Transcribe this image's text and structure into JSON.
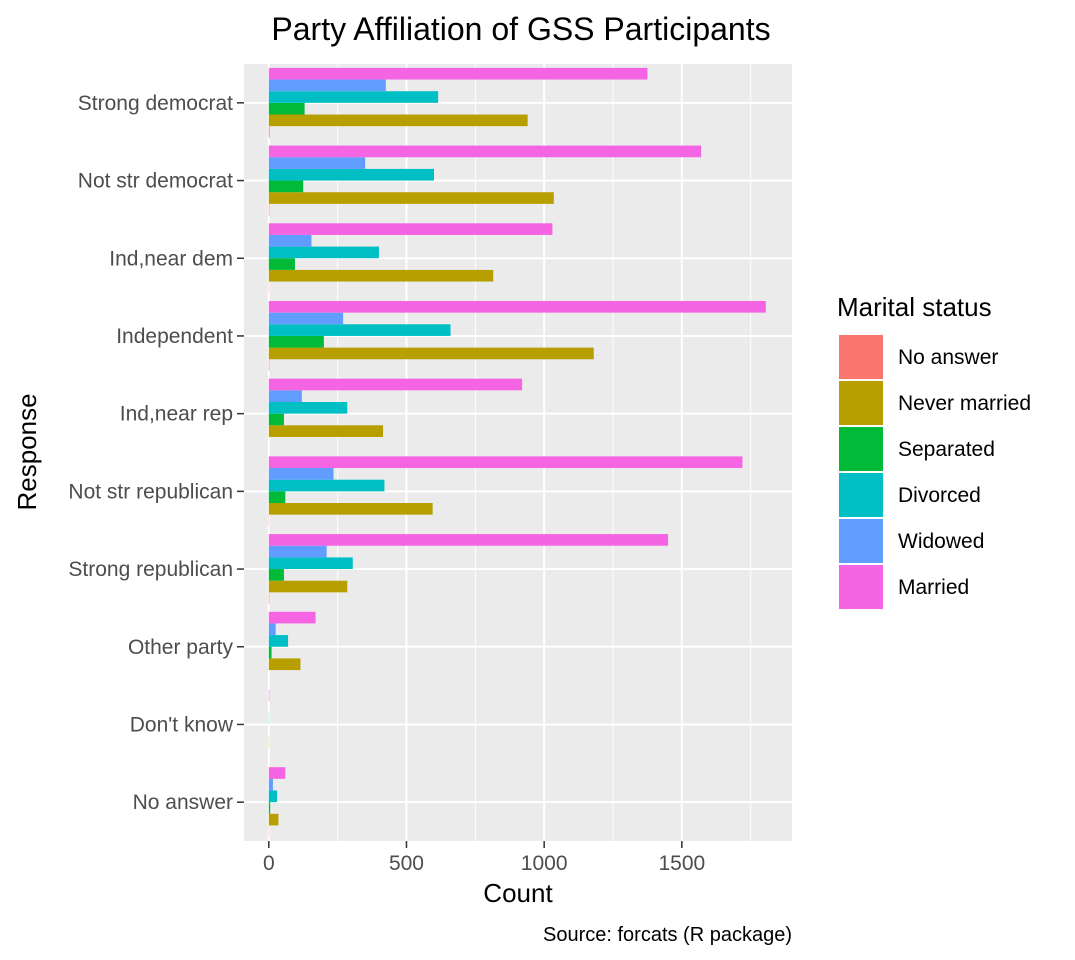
{
  "chart_data": {
    "type": "bar",
    "orientation": "horizontal",
    "title": "Party Affiliation of GSS Participants",
    "xlabel": "Count",
    "ylabel": "Response",
    "caption": "Source: forcats (R package)",
    "xlim": [
      -90,
      1900
    ],
    "xticks": [
      0,
      500,
      1000,
      1500
    ],
    "grid": true,
    "legend": {
      "title": "Marital status",
      "position": "right"
    },
    "categories": [
      "Strong democrat",
      "Not str democrat",
      "Ind,near dem",
      "Independent",
      "Ind,near rep",
      "Not str republican",
      "Strong republican",
      "Other party",
      "Don't know",
      "No answer"
    ],
    "series": [
      {
        "name": "No answer",
        "color": "#F8766D",
        "values": [
          3,
          2,
          1,
          2,
          0,
          1,
          2,
          0,
          0,
          1
        ]
      },
      {
        "name": "Never married",
        "color": "#B79F00",
        "values": [
          940,
          1035,
          815,
          1180,
          415,
          595,
          285,
          115,
          1,
          35
        ]
      },
      {
        "name": "Separated",
        "color": "#00BA38",
        "values": [
          130,
          125,
          95,
          200,
          55,
          60,
          55,
          10,
          0,
          5
        ]
      },
      {
        "name": "Divorced",
        "color": "#00BFC4",
        "values": [
          615,
          600,
          400,
          660,
          285,
          420,
          305,
          70,
          1,
          30
        ]
      },
      {
        "name": "Widowed",
        "color": "#619CFF",
        "values": [
          425,
          350,
          155,
          270,
          120,
          235,
          210,
          25,
          0,
          15
        ]
      },
      {
        "name": "Married",
        "color": "#F564E3",
        "values": [
          1375,
          1570,
          1030,
          1805,
          920,
          1720,
          1450,
          170,
          2,
          60
        ]
      }
    ]
  }
}
